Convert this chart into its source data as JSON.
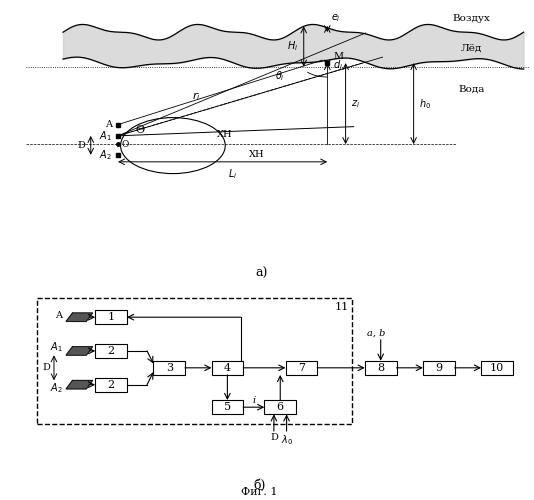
{
  "bg_color": "#ffffff",
  "line_color": "#000000",
  "label_a": "а)",
  "label_b": "б)",
  "fig_label": "Фиг. 1",
  "text_vozduh": "Воздух",
  "text_led": "Лёд",
  "text_voda": "Вода",
  "text_XH1": "ХН",
  "text_XH2": "ХН",
  "text_Theta": "Θ",
  "dashed_box_label": "11"
}
